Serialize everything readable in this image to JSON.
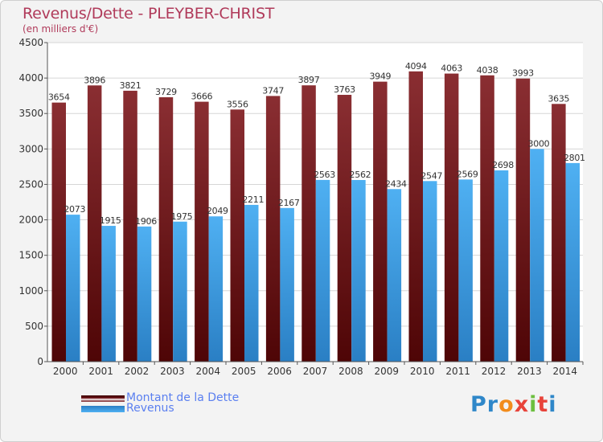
{
  "title": "Revenus/Dette - PLEYBER-CHRIST",
  "subtitle": "(en milliers d'€)",
  "brand": {
    "letters": [
      "P",
      "r",
      "o",
      "x",
      "i",
      "t",
      "i"
    ],
    "colors": [
      "#2f87c9",
      "#2f87c9",
      "#f28c1c",
      "#e8433a",
      "#6cbf3f",
      "#e8433a",
      "#2f87c9"
    ]
  },
  "colors": {
    "dette": "#7a1f24",
    "revenus": "#3f9fe6",
    "title": "#b03a5a",
    "legend_text": "#5a7ff0"
  },
  "chart_data": {
    "type": "bar",
    "title": "Revenus/Dette - PLEYBER-CHRIST",
    "subtitle": "(en milliers d'€)",
    "categories": [
      "2000",
      "2001",
      "2002",
      "2003",
      "2004",
      "2005",
      "2006",
      "2007",
      "2008",
      "2009",
      "2010",
      "2011",
      "2012",
      "2013",
      "2014"
    ],
    "series": [
      {
        "name": "Montant de la Dette",
        "values": [
          3654,
          3896,
          3821,
          3729,
          3666,
          3556,
          3747,
          3897,
          3763,
          3949,
          4094,
          4063,
          4038,
          3993,
          3635
        ]
      },
      {
        "name": "Revenus",
        "values": [
          2073,
          1915,
          1906,
          1975,
          2049,
          2211,
          2167,
          2563,
          2562,
          2434,
          2547,
          2569,
          2698,
          3000,
          2801
        ]
      }
    ],
    "yticks": [
      0,
      500,
      1000,
      1500,
      2000,
      2500,
      3000,
      3500,
      4000,
      4500
    ],
    "ylim": [
      0,
      4500
    ],
    "grid": true,
    "legend_position": "bottom-left"
  }
}
